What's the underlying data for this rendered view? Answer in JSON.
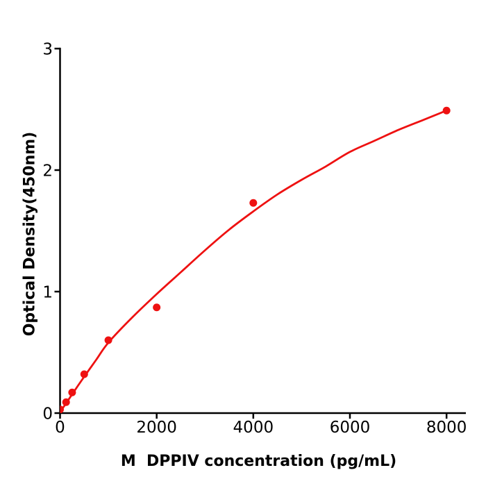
{
  "figure": {
    "background_color": "#ffffff",
    "accent_color": "#ee1111",
    "axis_color": "#000000"
  },
  "chart_data": {
    "type": "scatter",
    "title": "",
    "xlabel": "M  DPPIV concentration (pg/mL)",
    "ylabel": "Optical Density(450nm)",
    "xlim": [
      0,
      8400
    ],
    "ylim": [
      0,
      3
    ],
    "x_ticks": [
      0,
      2000,
      4000,
      6000,
      8000
    ],
    "x_tick_labels": [
      "0",
      "2000",
      "4000",
      "6000",
      "8000"
    ],
    "y_ticks": [
      0,
      1,
      2,
      3
    ],
    "y_tick_labels": [
      "0",
      "1",
      "2",
      "3"
    ],
    "grid": false,
    "legend": "none",
    "series": [
      {
        "role": "measured-points",
        "type": "scatter",
        "color": "#ee1111",
        "points": [
          [
            0,
            0.03
          ],
          [
            125,
            0.09
          ],
          [
            250,
            0.17
          ],
          [
            500,
            0.32
          ],
          [
            1000,
            0.6
          ],
          [
            2000,
            0.87
          ],
          [
            4000,
            1.73
          ],
          [
            8000,
            2.49
          ]
        ]
      },
      {
        "role": "fit-curve",
        "type": "line",
        "color": "#ee1111",
        "points": [
          [
            0,
            0.01
          ],
          [
            125,
            0.08
          ],
          [
            250,
            0.155
          ],
          [
            500,
            0.3
          ],
          [
            750,
            0.44
          ],
          [
            1000,
            0.58
          ],
          [
            1500,
            0.79
          ],
          [
            2000,
            0.98
          ],
          [
            2500,
            1.16
          ],
          [
            3000,
            1.34
          ],
          [
            3500,
            1.51
          ],
          [
            4000,
            1.66
          ],
          [
            4500,
            1.8
          ],
          [
            5000,
            1.92
          ],
          [
            5500,
            2.03
          ],
          [
            6000,
            2.15
          ],
          [
            6500,
            2.24
          ],
          [
            7000,
            2.33
          ],
          [
            7500,
            2.41
          ],
          [
            8000,
            2.49
          ]
        ]
      }
    ]
  }
}
